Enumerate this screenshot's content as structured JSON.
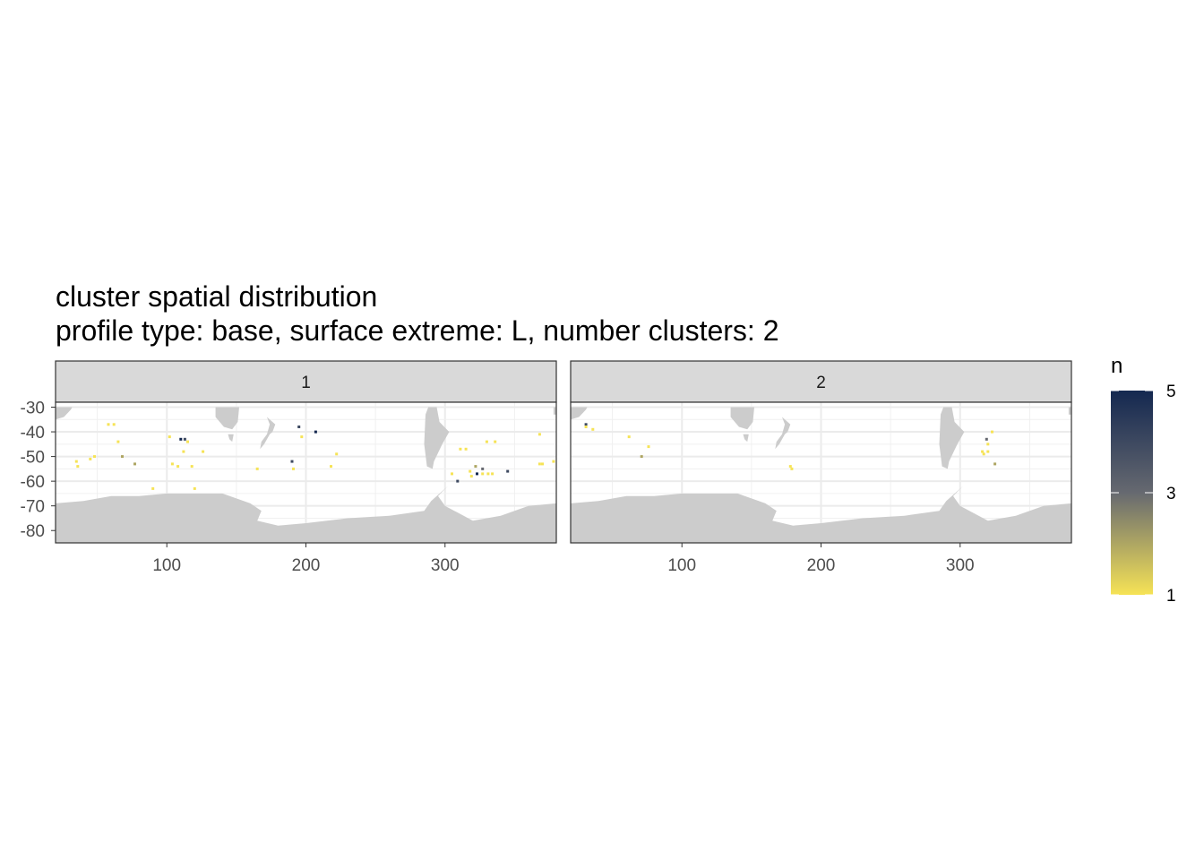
{
  "chart_data": {
    "type": "heatmap",
    "title": "cluster spatial distribution",
    "subtitle": "profile type: base, surface extreme: L, number clusters: 2",
    "xlabel": "",
    "ylabel": "",
    "xlim": [
      20,
      380
    ],
    "ylim": [
      -85,
      -28
    ],
    "x_ticks": [
      100,
      200,
      300
    ],
    "y_ticks": [
      -30,
      -40,
      -50,
      -60,
      -70,
      -80
    ],
    "grid": true,
    "legend": {
      "title": "n",
      "position": "right",
      "min": 1,
      "max": 5,
      "ticks": [
        1,
        3,
        5
      ],
      "low_color": "#F6E356",
      "mid_color": "#666970",
      "high_color": "#142850"
    },
    "land_color": "#CCCCCC",
    "panels": [
      {
        "label": "1",
        "points": [
          {
            "x": 58,
            "y": -37,
            "n": 1
          },
          {
            "x": 62,
            "y": -37,
            "n": 1
          },
          {
            "x": 65,
            "y": -44,
            "n": 1
          },
          {
            "x": 68,
            "y": -50,
            "n": 2
          },
          {
            "x": 35,
            "y": -52,
            "n": 1
          },
          {
            "x": 36,
            "y": -54,
            "n": 1
          },
          {
            "x": 45,
            "y": -51,
            "n": 1
          },
          {
            "x": 48,
            "y": -50,
            "n": 1
          },
          {
            "x": 77,
            "y": -53,
            "n": 2
          },
          {
            "x": 90,
            "y": -63,
            "n": 1
          },
          {
            "x": 102,
            "y": -42,
            "n": 1
          },
          {
            "x": 110,
            "y": -43,
            "n": 5
          },
          {
            "x": 113,
            "y": -43,
            "n": 4
          },
          {
            "x": 115,
            "y": -44,
            "n": 1
          },
          {
            "x": 112,
            "y": -48,
            "n": 1
          },
          {
            "x": 108,
            "y": -54,
            "n": 1
          },
          {
            "x": 104,
            "y": -53,
            "n": 1
          },
          {
            "x": 118,
            "y": -54,
            "n": 1
          },
          {
            "x": 120,
            "y": -63,
            "n": 1
          },
          {
            "x": 126,
            "y": -48,
            "n": 1
          },
          {
            "x": 165,
            "y": -55,
            "n": 1
          },
          {
            "x": 195,
            "y": -38,
            "n": 4
          },
          {
            "x": 197,
            "y": -42,
            "n": 1
          },
          {
            "x": 207,
            "y": -40,
            "n": 5
          },
          {
            "x": 190,
            "y": -52,
            "n": 4
          },
          {
            "x": 191,
            "y": -55,
            "n": 1
          },
          {
            "x": 218,
            "y": -54,
            "n": 1
          },
          {
            "x": 222,
            "y": -49,
            "n": 1
          },
          {
            "x": 305,
            "y": -57,
            "n": 1
          },
          {
            "x": 309,
            "y": -60,
            "n": 4
          },
          {
            "x": 318,
            "y": -56,
            "n": 1
          },
          {
            "x": 319,
            "y": -58,
            "n": 1
          },
          {
            "x": 322,
            "y": -54,
            "n": 2
          },
          {
            "x": 323,
            "y": -57,
            "n": 5
          },
          {
            "x": 327,
            "y": -57,
            "n": 1
          },
          {
            "x": 331,
            "y": -57,
            "n": 1
          },
          {
            "x": 334,
            "y": -57,
            "n": 1
          },
          {
            "x": 327,
            "y": -55,
            "n": 3
          },
          {
            "x": 311,
            "y": -47,
            "n": 1
          },
          {
            "x": 315,
            "y": -47,
            "n": 1
          },
          {
            "x": 330,
            "y": -44,
            "n": 1
          },
          {
            "x": 336,
            "y": -44,
            "n": 1
          },
          {
            "x": 345,
            "y": -56,
            "n": 4
          },
          {
            "x": 368,
            "y": -41,
            "n": 1
          },
          {
            "x": 370,
            "y": -53,
            "n": 1
          },
          {
            "x": 378,
            "y": -52,
            "n": 1
          },
          {
            "x": 368,
            "y": -53,
            "n": 1
          }
        ]
      },
      {
        "label": "2",
        "points": [
          {
            "x": 31,
            "y": -37,
            "n": 4
          },
          {
            "x": 31,
            "y": -38,
            "n": 1
          },
          {
            "x": 36,
            "y": -39,
            "n": 1
          },
          {
            "x": 62,
            "y": -42,
            "n": 1
          },
          {
            "x": 76,
            "y": -46,
            "n": 1
          },
          {
            "x": 71,
            "y": -50,
            "n": 2
          },
          {
            "x": 178,
            "y": -54,
            "n": 1
          },
          {
            "x": 179,
            "y": -55,
            "n": 1
          },
          {
            "x": 319,
            "y": -43,
            "n": 3
          },
          {
            "x": 320,
            "y": -45,
            "n": 1
          },
          {
            "x": 316,
            "y": -48,
            "n": 1
          },
          {
            "x": 317,
            "y": -49,
            "n": 1
          },
          {
            "x": 320,
            "y": -48,
            "n": 1
          },
          {
            "x": 323,
            "y": -40,
            "n": 1
          },
          {
            "x": 325,
            "y": -53,
            "n": 2
          }
        ]
      }
    ]
  }
}
